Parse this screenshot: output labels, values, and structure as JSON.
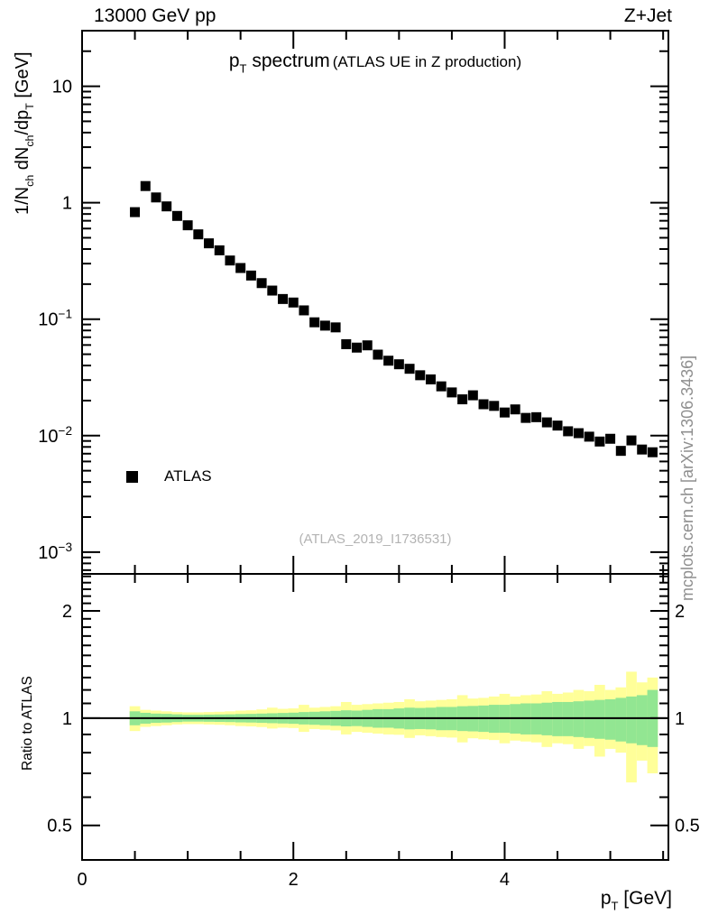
{
  "chart_data": {
    "type": "scatter",
    "header_left": "13000 GeV pp",
    "header_right": "Z+Jet",
    "title": "p_{T} spectrum",
    "subtitle": "(ATLAS UE in Z production)",
    "xlabel": "p_{T} [GeV]",
    "ylabel": "1/N_{ch} dN_{ch}/dp_{T} [GeV]",
    "ratio_label": "Ratio to ATLAS",
    "watermark": "(ATLAS_2019_I1736531)",
    "side_note": "mcplots.cern.ch [arXiv:1306.3436]",
    "legend": [
      {
        "marker": "black-square",
        "label": "ATLAS"
      }
    ],
    "xlim": [
      0,
      5.55
    ],
    "ylim": [
      0.00065,
      30
    ],
    "ratio_ylim": [
      0.4,
      2.54
    ],
    "log_y_main": true,
    "log_y_ratio": true,
    "bin_width": 0.1,
    "xticks": {
      "major": [
        {
          "v": 0,
          "t": "0"
        },
        {
          "v": 2,
          "t": "2"
        },
        {
          "v": 4,
          "t": "4"
        }
      ],
      "minor_step": 0.5
    },
    "yticks_main": [
      {
        "v": 10,
        "t": "10"
      },
      {
        "v": 1,
        "t": "1"
      },
      {
        "v": 0.1,
        "t": "10^{-1}"
      },
      {
        "v": 0.01,
        "t": "10^{-2}"
      },
      {
        "v": 0.001,
        "t": "10^{-3}"
      }
    ],
    "yticks_ratio": [
      {
        "v": 2,
        "t": "2"
      },
      {
        "v": 1,
        "t": "1"
      },
      {
        "v": 0.5,
        "t": "0.5"
      }
    ],
    "x": [
      0.5,
      0.6,
      0.7,
      0.8,
      0.9,
      1.0,
      1.1,
      1.2,
      1.3,
      1.4,
      1.5,
      1.6,
      1.7,
      1.8,
      1.9,
      2.0,
      2.1,
      2.2,
      2.3,
      2.4,
      2.5,
      2.6,
      2.7,
      2.8,
      2.9,
      3.0,
      3.1,
      3.2,
      3.3,
      3.4,
      3.5,
      3.6,
      3.7,
      3.8,
      3.9,
      4.0,
      4.1,
      4.2,
      4.3,
      4.4,
      4.5,
      4.6,
      4.7,
      4.8,
      4.9,
      5.0,
      5.1,
      5.2,
      5.3,
      5.4
    ],
    "values": [
      0.83,
      1.39,
      1.11,
      0.93,
      0.77,
      0.64,
      0.535,
      0.448,
      0.39,
      0.319,
      0.275,
      0.237,
      0.204,
      0.176,
      0.149,
      0.139,
      0.119,
      0.094,
      0.088,
      0.085,
      0.061,
      0.057,
      0.0596,
      0.0496,
      0.044,
      0.041,
      0.0375,
      0.033,
      0.0304,
      0.0265,
      0.0235,
      0.0205,
      0.0222,
      0.0186,
      0.018,
      0.0158,
      0.0168,
      0.0142,
      0.0144,
      0.013,
      0.0122,
      0.0109,
      0.0105,
      0.0098,
      0.0089,
      0.0094,
      0.0074,
      0.0091,
      0.0076,
      0.0072
    ],
    "ratio_bands": {
      "green_hi": [
        1.045,
        1.035,
        1.03,
        1.028,
        1.025,
        1.022,
        1.022,
        1.023,
        1.024,
        1.025,
        1.027,
        1.028,
        1.03,
        1.032,
        1.034,
        1.036,
        1.04,
        1.042,
        1.045,
        1.048,
        1.052,
        1.05,
        1.055,
        1.06,
        1.06,
        1.065,
        1.07,
        1.068,
        1.07,
        1.075,
        1.075,
        1.08,
        1.082,
        1.085,
        1.09,
        1.09,
        1.095,
        1.1,
        1.1,
        1.105,
        1.11,
        1.11,
        1.115,
        1.12,
        1.125,
        1.13,
        1.14,
        1.15,
        1.16,
        1.2
      ],
      "green_lo": [
        0.955,
        0.965,
        0.97,
        0.972,
        0.975,
        0.978,
        0.978,
        0.977,
        0.976,
        0.975,
        0.973,
        0.972,
        0.97,
        0.968,
        0.966,
        0.964,
        0.96,
        0.958,
        0.955,
        0.952,
        0.948,
        0.95,
        0.945,
        0.94,
        0.94,
        0.935,
        0.93,
        0.932,
        0.93,
        0.925,
        0.925,
        0.92,
        0.918,
        0.915,
        0.91,
        0.91,
        0.905,
        0.9,
        0.9,
        0.895,
        0.89,
        0.89,
        0.885,
        0.88,
        0.875,
        0.87,
        0.86,
        0.85,
        0.84,
        0.83
      ],
      "yellow_hi": [
        1.08,
        1.055,
        1.05,
        1.045,
        1.04,
        1.038,
        1.038,
        1.04,
        1.042,
        1.045,
        1.05,
        1.052,
        1.058,
        1.07,
        1.062,
        1.065,
        1.09,
        1.07,
        1.075,
        1.08,
        1.11,
        1.09,
        1.095,
        1.1,
        1.105,
        1.11,
        1.13,
        1.115,
        1.12,
        1.125,
        1.13,
        1.16,
        1.135,
        1.14,
        1.15,
        1.17,
        1.15,
        1.16,
        1.165,
        1.19,
        1.17,
        1.18,
        1.2,
        1.19,
        1.24,
        1.2,
        1.22,
        1.35,
        1.26,
        1.3
      ],
      "yellow_lo": [
        0.92,
        0.945,
        0.95,
        0.955,
        0.96,
        0.962,
        0.962,
        0.96,
        0.958,
        0.955,
        0.95,
        0.948,
        0.944,
        0.935,
        0.94,
        0.938,
        0.915,
        0.932,
        0.928,
        0.924,
        0.9,
        0.915,
        0.91,
        0.905,
        0.9,
        0.898,
        0.88,
        0.895,
        0.89,
        0.885,
        0.882,
        0.855,
        0.878,
        0.872,
        0.868,
        0.85,
        0.865,
        0.86,
        0.855,
        0.83,
        0.85,
        0.845,
        0.82,
        0.835,
        0.78,
        0.82,
        0.8,
        0.66,
        0.76,
        0.7
      ]
    },
    "colors": {
      "marker": "#000000",
      "band_inner": "#92e692",
      "band_outer": "#ffff99",
      "axis": "#000000",
      "watermark": "#b3b3b3",
      "side_note": "#8f8f8f"
    }
  }
}
